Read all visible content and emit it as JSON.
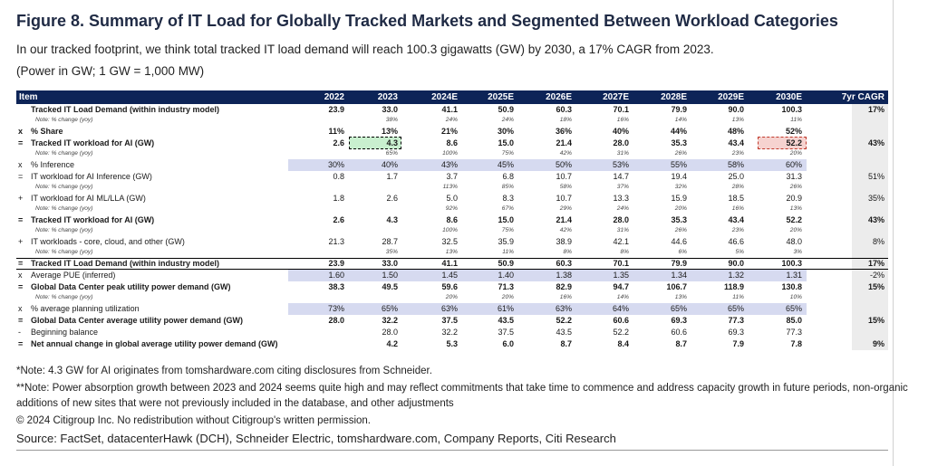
{
  "figure": {
    "title": "Figure 8. Summary of IT Load for Globally Tracked Markets and Segmented Between Workload Categories",
    "subtitle": "In our tracked footprint, we think total tracked IT load demand will reach 100.3 gigawatts (GW) by 2030, a 17% CAGR from 2023.",
    "units_note": "(Power in GW; 1 GW = 1,000 MW)"
  },
  "table": {
    "headers": [
      "Item",
      "2022",
      "2023",
      "2024E",
      "2025E",
      "2026E",
      "2027E",
      "2028E",
      "2029E",
      "2030E",
      "7yr CAGR"
    ],
    "rows": [
      {
        "op": "",
        "label": "Tracked IT Load Demand (within industry model)",
        "values": [
          "23.9",
          "33.0",
          "41.1",
          "50.9",
          "60.3",
          "70.1",
          "79.9",
          "90.0",
          "100.3"
        ],
        "cagr": "17%",
        "bold": true
      },
      {
        "note": true,
        "label": "Note: % change (yoy)",
        "values": [
          "",
          "38%",
          "24%",
          "24%",
          "18%",
          "16%",
          "14%",
          "13%",
          "11%"
        ],
        "cagr": ""
      },
      {
        "op": "x",
        "label": "% Share",
        "values": [
          "11%",
          "13%",
          "21%",
          "30%",
          "36%",
          "40%",
          "44%",
          "48%",
          "52%"
        ],
        "cagr": "",
        "bold": true
      },
      {
        "op": "=",
        "label": "Tracked IT workload for AI (GW)",
        "values": [
          "2.6",
          "4.3",
          "8.6",
          "15.0",
          "21.4",
          "28.0",
          "35.3",
          "43.4",
          "52.2"
        ],
        "cagr": "43%",
        "bold": true
      },
      {
        "note": true,
        "label": "Note: % change (yoy)",
        "values": [
          "",
          "65%",
          "100%",
          "75%",
          "42%",
          "31%",
          "26%",
          "23%",
          "20%"
        ],
        "cagr": ""
      },
      {
        "op": "x",
        "label": "% Inference",
        "values": [
          "30%",
          "40%",
          "43%",
          "45%",
          "50%",
          "53%",
          "55%",
          "58%",
          "60%"
        ],
        "cagr": "",
        "shaded": true
      },
      {
        "op": "=",
        "label": "IT workload for AI Inference (GW)",
        "values": [
          "0.8",
          "1.7",
          "3.7",
          "6.8",
          "10.7",
          "14.7",
          "19.4",
          "25.0",
          "31.3"
        ],
        "cagr": "51%"
      },
      {
        "note": true,
        "label": "Note: % change (yoy)",
        "values": [
          "",
          "",
          "113%",
          "85%",
          "58%",
          "37%",
          "32%",
          "28%",
          "26%"
        ],
        "cagr": ""
      },
      {
        "op": "+",
        "label": "IT workload for AI ML/LLA (GW)",
        "values": [
          "1.8",
          "2.6",
          "5.0",
          "8.3",
          "10.7",
          "13.3",
          "15.9",
          "18.5",
          "20.9"
        ],
        "cagr": "35%"
      },
      {
        "note": true,
        "label": "Note: % change (yoy)",
        "values": [
          "",
          "",
          "92%",
          "67%",
          "29%",
          "24%",
          "20%",
          "16%",
          "13%"
        ],
        "cagr": ""
      },
      {
        "op": "=",
        "label": "Tracked IT workload for AI (GW)",
        "values": [
          "2.6",
          "4.3",
          "8.6",
          "15.0",
          "21.4",
          "28.0",
          "35.3",
          "43.4",
          "52.2"
        ],
        "cagr": "43%",
        "bold": true
      },
      {
        "note": true,
        "label": "Note: % change (yoy)",
        "values": [
          "",
          "",
          "100%",
          "75%",
          "42%",
          "31%",
          "26%",
          "23%",
          "20%"
        ],
        "cagr": ""
      },
      {
        "op": "+",
        "label": "IT workloads - core, cloud, and other (GW)",
        "values": [
          "21.3",
          "28.7",
          "32.5",
          "35.9",
          "38.9",
          "42.1",
          "44.6",
          "46.6",
          "48.0"
        ],
        "cagr": "8%"
      },
      {
        "note": true,
        "label": "Note: % change (yoy)",
        "values": [
          "",
          "35%",
          "13%",
          "11%",
          "8%",
          "8%",
          "6%",
          "5%",
          "3%"
        ],
        "cagr": ""
      },
      {
        "op": "=",
        "label": "Tracked IT Load Demand (within industry model)",
        "values": [
          "23.9",
          "33.0",
          "41.1",
          "50.9",
          "60.3",
          "70.1",
          "79.9",
          "90.0",
          "100.3"
        ],
        "cagr": "17%",
        "bold": true,
        "boxed": true
      },
      {
        "op": "x",
        "label": "Average PUE (inferred)",
        "values": [
          "1.60",
          "1.50",
          "1.45",
          "1.40",
          "1.38",
          "1.35",
          "1.34",
          "1.32",
          "1.31"
        ],
        "cagr": "-2%",
        "shaded": true
      },
      {
        "op": "=",
        "label": "Global Data Center peak utility power demand (GW)",
        "values": [
          "38.3",
          "49.5",
          "59.6",
          "71.3",
          "82.9",
          "94.7",
          "106.7",
          "118.9",
          "130.8"
        ],
        "cagr": "15%",
        "bold": true
      },
      {
        "note": true,
        "label": "Note: % change (yoy)",
        "values": [
          "",
          "",
          "20%",
          "20%",
          "16%",
          "14%",
          "13%",
          "11%",
          "10%"
        ],
        "cagr": ""
      },
      {
        "op": "x",
        "label": "% average planning utilization",
        "values": [
          "73%",
          "65%",
          "63%",
          "61%",
          "63%",
          "64%",
          "65%",
          "65%",
          "65%"
        ],
        "cagr": "",
        "shaded": true
      },
      {
        "op": "=",
        "label": "Global Data Center average utility power demand (GW)",
        "values": [
          "28.0",
          "32.2",
          "37.5",
          "43.5",
          "52.2",
          "60.6",
          "69.3",
          "77.3",
          "85.0"
        ],
        "cagr": "15%",
        "bold": true
      },
      {
        "op": "-",
        "label": "Beginning balance",
        "values": [
          "",
          "28.0",
          "32.2",
          "37.5",
          "43.5",
          "52.2",
          "60.6",
          "69.3",
          "77.3"
        ],
        "cagr": ""
      },
      {
        "op": "=",
        "label": "Net annual change in global average utility power demand (GW)",
        "values": [
          "",
          "4.2",
          "5.3",
          "6.0",
          "8.7",
          "8.4",
          "8.7",
          "7.9",
          "7.8"
        ],
        "cagr": "9%",
        "bold": true
      }
    ]
  },
  "footnotes": {
    "note1": "*Note: 4.3 GW for AI originates from tomshardware.com citing disclosures from Schneider.",
    "note2_line1": "**Note: Power absorption growth between 2023 and 2024 seems quite high and may reflect commitments that take time to commence and address capacity growth in future periods, non-organic",
    "note2_line2": "additions of new sites that were not previously included in the database, and other adjustments",
    "copyright": "© 2024 Citigroup Inc. No redistribution without Citigroup's written permission.",
    "source": "Source: FactSet, datacenterHawk (DCH), Schneider Electric, tomshardware.com, Company Reports, Citi Research"
  },
  "highlight_colors": {
    "green": "#c9efcf",
    "red": "#f6d3d0",
    "header": "#0d2457",
    "shade": "#d6daf0"
  }
}
